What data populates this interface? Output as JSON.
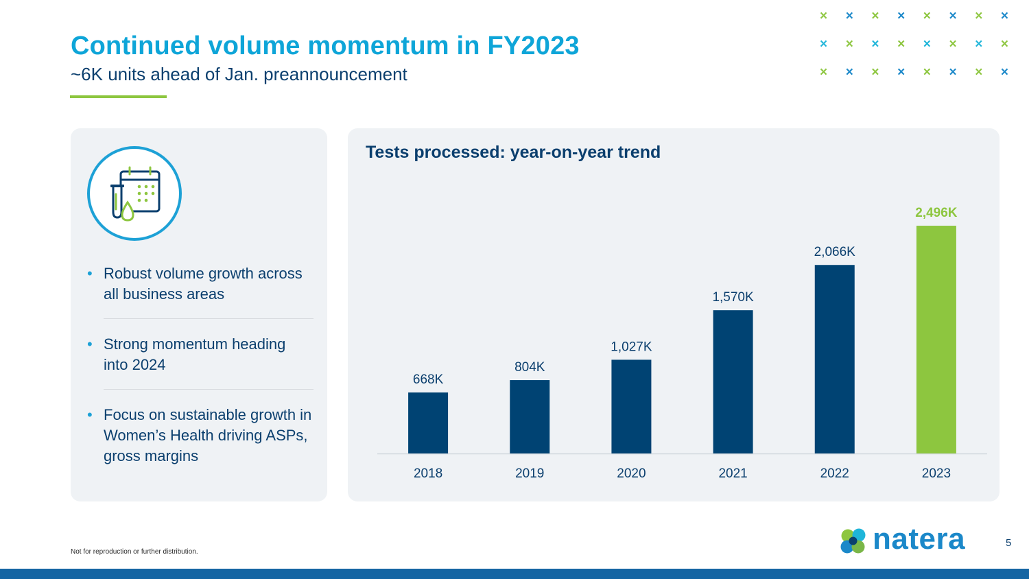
{
  "header": {
    "title": "Continued volume momentum in FY2023",
    "subtitle": "~6K units ahead of Jan. preannouncement"
  },
  "decor": {
    "x_mark_glyph": "×",
    "x_mark_colors": [
      "#8dc63f",
      "#1b88c9",
      "#1fb5d9"
    ]
  },
  "left_panel": {
    "icon": "calendar-test-tube-icon",
    "bullets": [
      "Robust volume growth across all business areas",
      "Strong momentum heading into 2024",
      "Focus on sustainable growth in Women’s Health driving ASPs, gross margins"
    ]
  },
  "chart_data": {
    "type": "bar",
    "title": "Tests processed: year-on-year trend",
    "categories": [
      "2018",
      "2019",
      "2020",
      "2021",
      "2022",
      "2023"
    ],
    "values": [
      668,
      804,
      1027,
      1570,
      2066,
      2496
    ],
    "data_labels": [
      "668K",
      "804K",
      "1,027K",
      "1,570K",
      "2,066K",
      "2,496K"
    ],
    "unit": "K",
    "ylim": [
      0,
      3000
    ],
    "grid": false,
    "legend": "none",
    "colors": {
      "bar": "#004373",
      "highlight_bar": "#8dc63f",
      "highlight_index": 5,
      "label": "#0b3f6e",
      "highlight_label": "#8dc63f"
    }
  },
  "footer": {
    "note": "Not for reproduction or further distribution.",
    "page_number": "5",
    "brand": "natera"
  },
  "colors": {
    "title": "#0ea5d8",
    "navy": "#0b3f6e",
    "green": "#8dc63f",
    "bottom_bar": "#1565a3",
    "panel_bg": "#eff2f5"
  }
}
